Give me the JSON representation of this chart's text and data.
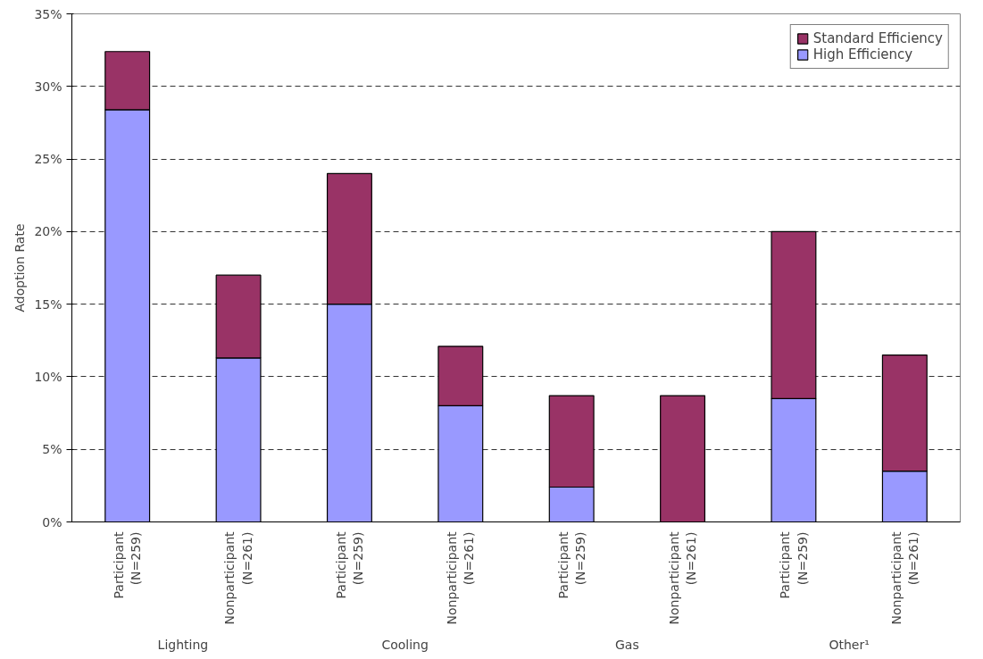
{
  "chart_data": {
    "type": "bar",
    "stacked": true,
    "ylabel": "Adoption Rate",
    "categories": [
      "Participant\n(N=259)",
      "Nonparticipant\n(N=261)",
      "Participant\n(N=259)",
      "Nonparticipant\n(N=261)",
      "Participant\n(N=259)",
      "Nonparticipant\n(N=261)",
      "Participant\n(N=259)",
      "Nonparticipant\n(N=261)"
    ],
    "series": [
      {
        "name": "High Efficiency",
        "color": "#9999ff",
        "values": [
          28.4,
          11.3,
          15.0,
          8.0,
          2.4,
          null,
          8.5,
          3.5
        ]
      },
      {
        "name": "Standard Efficiency",
        "color": "#993366",
        "values": [
          4.0,
          5.7,
          9.0,
          4.1,
          6.3,
          8.7,
          11.5,
          8.0
        ]
      }
    ],
    "annotations": [
      "Lighting",
      "Cooling",
      "Gas",
      "Other¹"
    ],
    "ylim": [
      0,
      35
    ],
    "yticks": [
      {
        "value": 0,
        "label": "0%"
      },
      {
        "value": 5,
        "label": "5%"
      },
      {
        "value": 10,
        "label": "10%"
      },
      {
        "value": 15,
        "label": "15%"
      },
      {
        "value": 20,
        "label": "20%"
      },
      {
        "value": 25,
        "label": "25%"
      },
      {
        "value": 30,
        "label": "30%"
      },
      {
        "value": 35,
        "label": "35%"
      }
    ],
    "grid": "y",
    "legend": "top right"
  }
}
